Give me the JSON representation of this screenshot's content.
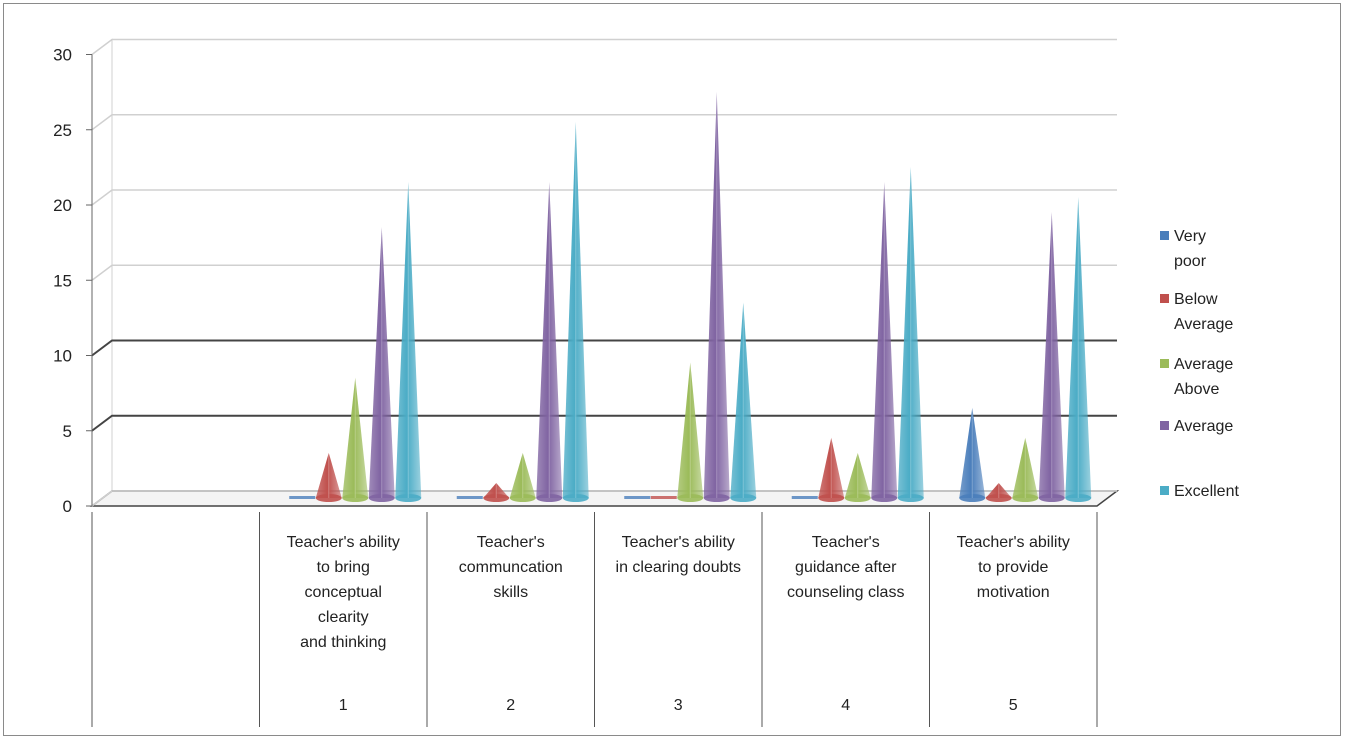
{
  "chart_data": {
    "type": "bar",
    "style": "3d-cone",
    "title": "",
    "xlabel": "",
    "ylabel": "",
    "ylim": [
      0,
      30
    ],
    "yticks": [
      0,
      5,
      10,
      15,
      20,
      25,
      30
    ],
    "grid": true,
    "legend_position": "right",
    "categories": [
      "1",
      "2",
      "3",
      "4",
      "5"
    ],
    "category_descriptions": [
      [
        "Teacher's ability",
        "to bring",
        "conceptual",
        "clearity",
        "and thinking"
      ],
      [
        "Teacher's",
        "communcation",
        "skills"
      ],
      [
        "Teacher's ability",
        "in clearing doubts"
      ],
      [
        "Teacher's",
        "guidance after",
        "counseling class"
      ],
      [
        "Teacher's ability",
        "to provide",
        "motivation"
      ]
    ],
    "series": [
      {
        "name": "Very poor",
        "legend_lines": [
          "Very",
          "poor"
        ],
        "color": "#4a7ebb",
        "values": [
          0,
          0,
          0,
          0,
          6
        ]
      },
      {
        "name": "Below Average",
        "legend_lines": [
          " Below",
          "Average"
        ],
        "color": "#c0504d",
        "values": [
          3,
          1,
          0,
          4,
          1
        ]
      },
      {
        "name": "Average",
        "legend_lines": [
          "Average",
          "Above"
        ],
        "color": "#9bbb59",
        "values": [
          8,
          3,
          9,
          3,
          4
        ]
      },
      {
        "name": "Above Average",
        "legend_lines": [
          " Average"
        ],
        "color": "#8064a2",
        "values": [
          18,
          21,
          27,
          21,
          19
        ]
      },
      {
        "name": "Excellent",
        "legend_lines": [
          "Excellent"
        ],
        "color": "#4bacc6",
        "values": [
          21,
          25,
          13,
          22,
          20
        ]
      }
    ]
  }
}
